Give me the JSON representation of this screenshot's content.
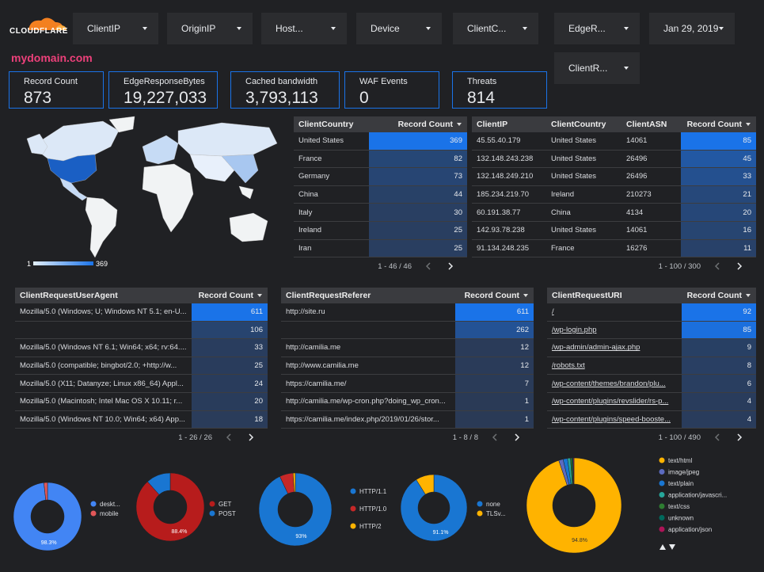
{
  "header": {
    "logo": "CLOUDFLARE",
    "domain": "mydomain.com",
    "filters": [
      "ClientIP",
      "OriginIP",
      "Host...",
      "Device",
      "ClientC...",
      "EdgeR...",
      "Jan 29, 2019",
      "ClientR..."
    ]
  },
  "scorecards": [
    {
      "label": "Record Count",
      "value": "873"
    },
    {
      "label": "EdgeResponseBytes",
      "value": "19,227,033"
    },
    {
      "label": "Cached bandwidth",
      "value": "3,793,113"
    },
    {
      "label": "WAF Events",
      "value": "0"
    },
    {
      "label": "Threats",
      "value": "814"
    }
  ],
  "map": {
    "legend_min": "1",
    "legend_max": "369"
  },
  "tables": [
    {
      "columns": [
        "ClientCountry",
        "Record Count"
      ],
      "rows": [
        [
          "United States",
          369
        ],
        [
          "France",
          82
        ],
        [
          "Germany",
          73
        ],
        [
          "China",
          44
        ],
        [
          "Italy",
          30
        ],
        [
          "Ireland",
          25
        ],
        [
          "Iran",
          25
        ]
      ],
      "pager": "1 - 46 / 46"
    },
    {
      "columns": [
        "ClientIP",
        "ClientCountry",
        "ClientASN",
        "Record Count"
      ],
      "rows": [
        [
          "45.55.40.179",
          "United States",
          14061,
          85
        ],
        [
          "132.148.243.238",
          "United States",
          26496,
          45
        ],
        [
          "132.148.249.210",
          "United States",
          26496,
          33
        ],
        [
          "185.234.219.70",
          "Ireland",
          210273,
          21
        ],
        [
          "60.191.38.77",
          "China",
          4134,
          20
        ],
        [
          "142.93.78.238",
          "United States",
          14061,
          16
        ],
        [
          "91.134.248.235",
          "France",
          16276,
          11
        ]
      ],
      "pager": "1 - 100 / 300"
    },
    {
      "columns": [
        "ClientRequestUserAgent",
        "Record Count"
      ],
      "rows": [
        [
          "Mozilla/5.0 (Windows; U; Windows NT 5.1; en-U...",
          611
        ],
        [
          null,
          106
        ],
        [
          "Mozilla/5.0 (Windows NT 6.1; Win64; x64; rv:64....",
          33
        ],
        [
          "Mozilla/5.0 (compatible; bingbot/2.0; +http://w...",
          25
        ],
        [
          "Mozilla/5.0 (X11; Datanyze; Linux x86_64) Appl...",
          24
        ],
        [
          "Mozilla/5.0 (Macintosh; Intel Mac OS X 10.11; r...",
          20
        ],
        [
          "Mozilla/5.0 (Windows NT 10.0; Win64; x64) App...",
          18
        ]
      ],
      "pager": "1 - 26 / 26"
    },
    {
      "columns": [
        "ClientRequestReferer",
        "Record Count"
      ],
      "rows": [
        [
          "http://site.ru",
          611
        ],
        [
          null,
          262
        ],
        [
          "http://camilia.me",
          12
        ],
        [
          "http://www.camilia.me",
          12
        ],
        [
          "https://camilia.me/",
          7
        ],
        [
          "http://camilia.me/wp-cron.php?doing_wp_cron...",
          1
        ],
        [
          "https://camilia.me/index.php/2019/01/26/stor...",
          1
        ]
      ],
      "pager": "1 - 8 / 8"
    },
    {
      "columns": [
        "ClientRequestURI",
        "Record Count"
      ],
      "rows": [
        [
          "/",
          92
        ],
        [
          "/wp-login.php",
          85
        ],
        [
          "/wp-admin/admin-ajax.php",
          9
        ],
        [
          "/robots.txt",
          8
        ],
        [
          "/wp-content/themes/brandon/plu...",
          6
        ],
        [
          "/wp-content/plugins/revslider/rs-p...",
          4
        ],
        [
          "/wp-content/plugins/speed-booste...",
          4
        ]
      ],
      "pager": "1 - 100 / 490"
    }
  ],
  "chart_data": [
    {
      "type": "pie",
      "categories": [
        "deskt...",
        "mobile"
      ],
      "values": [
        98.3,
        1.7
      ],
      "value_labels": [
        "98.3%",
        null
      ],
      "colors": [
        "#4285f4",
        "#e15759"
      ]
    },
    {
      "type": "pie",
      "categories": [
        "GET",
        "POST"
      ],
      "values": [
        88.4,
        11.6
      ],
      "value_labels": [
        "88.4%",
        null
      ],
      "colors": [
        "#b71c1c",
        "#1976d2"
      ]
    },
    {
      "type": "pie",
      "categories": [
        "HTTP/1.1",
        "HTTP/1.0",
        "HTTP/2"
      ],
      "values": [
        93,
        6,
        1
      ],
      "value_labels": [
        "93%",
        null,
        null
      ],
      "colors": [
        "#1976d2",
        "#c62828",
        "#ffb300"
      ]
    },
    {
      "type": "pie",
      "categories": [
        "none",
        "TLSv..."
      ],
      "values": [
        91.1,
        8.9
      ],
      "value_labels": [
        "91.1%",
        null
      ],
      "colors": [
        "#1976d2",
        "#ffb300"
      ]
    },
    {
      "type": "pie",
      "categories": [
        "text/html",
        "image/jpeg",
        "text/plain",
        "application/javascri...",
        "text/css",
        "unknown",
        "application/json"
      ],
      "values": [
        94.8,
        1.5,
        1.5,
        1,
        0.5,
        0.4,
        0.3
      ],
      "value_labels": [
        "94.8%",
        null,
        null,
        null,
        null,
        null,
        null
      ],
      "colors": [
        "#ffb300",
        "#5c6bc0",
        "#1976d2",
        "#26a69a",
        "#2e7d32",
        "#00695c",
        "#ad1457"
      ]
    }
  ]
}
